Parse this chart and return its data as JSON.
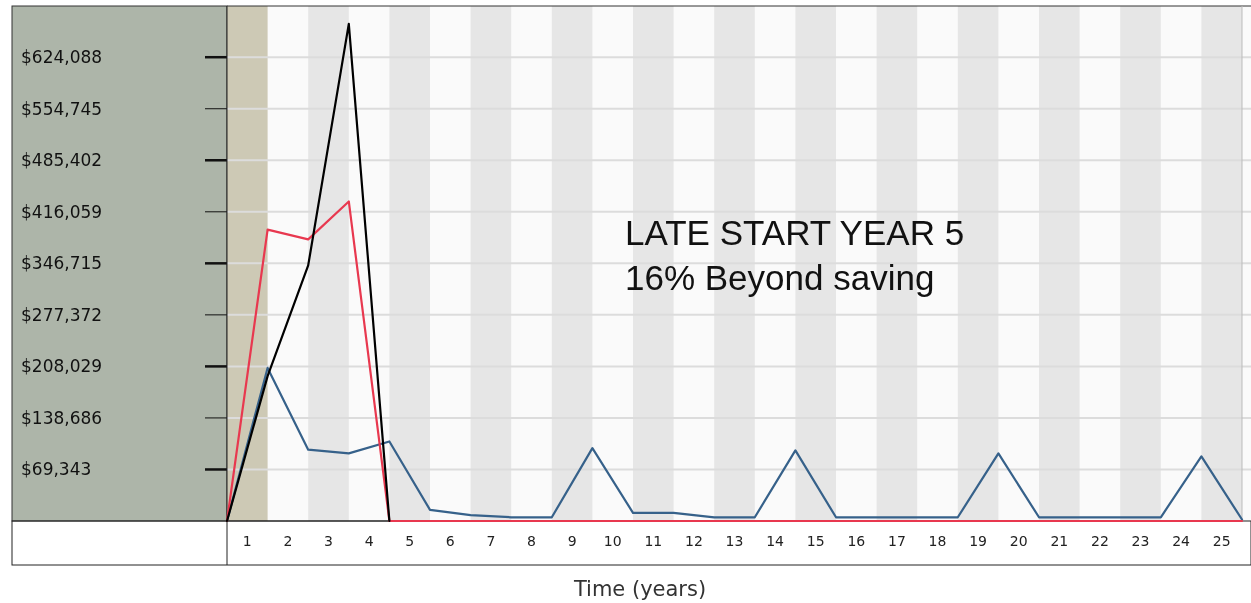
{
  "chart_data": {
    "type": "line",
    "xlabel": "Time (years)",
    "annotations": [
      "LATE START YEAR 5",
      "16% Beyond saving"
    ],
    "xlim": [
      0,
      25
    ],
    "xticks": [
      {
        "value": 0.5,
        "label": "1"
      },
      {
        "value": 1.5,
        "label": "2"
      },
      {
        "value": 2.5,
        "label": "3"
      },
      {
        "value": 3.5,
        "label": "4"
      },
      {
        "value": 4.5,
        "label": "5"
      },
      {
        "value": 5.5,
        "label": "6"
      },
      {
        "value": 6.5,
        "label": "7"
      },
      {
        "value": 7.5,
        "label": "8"
      },
      {
        "value": 8.5,
        "label": "9"
      },
      {
        "value": 9.5,
        "label": "10"
      },
      {
        "value": 10.5,
        "label": "11"
      },
      {
        "value": 11.5,
        "label": "12"
      },
      {
        "value": 12.5,
        "label": "13"
      },
      {
        "value": 13.5,
        "label": "14"
      },
      {
        "value": 14.5,
        "label": "15"
      },
      {
        "value": 15.5,
        "label": "16"
      },
      {
        "value": 16.5,
        "label": "17"
      },
      {
        "value": 17.5,
        "label": "18"
      },
      {
        "value": 18.5,
        "label": "19"
      },
      {
        "value": 19.5,
        "label": "20"
      },
      {
        "value": 20.5,
        "label": "21"
      },
      {
        "value": 21.5,
        "label": "22"
      },
      {
        "value": 22.5,
        "label": "23"
      },
      {
        "value": 23.5,
        "label": "24"
      },
      {
        "value": 24.5,
        "label": "25"
      }
    ],
    "ylim": [
      0,
      693000
    ],
    "yticks": [
      {
        "value": 69343,
        "label": "$69,343"
      },
      {
        "value": 138686,
        "label": "$138,686"
      },
      {
        "value": 208029,
        "label": "$208,029"
      },
      {
        "value": 277372,
        "label": "$277,372"
      },
      {
        "value": 346715,
        "label": "$346,715"
      },
      {
        "value": 416059,
        "label": "$416,059"
      },
      {
        "value": 485402,
        "label": "$485,402"
      },
      {
        "value": 554745,
        "label": "$554,745"
      },
      {
        "value": 624088,
        "label": "$624,088"
      }
    ],
    "grid": "y",
    "marker": "none",
    "line_style": "solid",
    "bands": [
      {
        "axis": "x",
        "from": 0,
        "to": 1,
        "color": "#cdc9b5"
      },
      {
        "axis": "x",
        "from": 2,
        "to": 3,
        "color": "#e6e6e6"
      },
      {
        "axis": "x",
        "from": 4,
        "to": 5,
        "color": "#e6e6e6"
      },
      {
        "axis": "x",
        "from": 6,
        "to": 7,
        "color": "#e6e6e6"
      },
      {
        "axis": "x",
        "from": 8,
        "to": 9,
        "color": "#e6e6e6"
      },
      {
        "axis": "x",
        "from": 10,
        "to": 11,
        "color": "#e6e6e6"
      },
      {
        "axis": "x",
        "from": 12,
        "to": 13,
        "color": "#e6e6e6"
      },
      {
        "axis": "x",
        "from": 14,
        "to": 15,
        "color": "#e6e6e6"
      },
      {
        "axis": "x",
        "from": 16,
        "to": 17,
        "color": "#e6e6e6"
      },
      {
        "axis": "x",
        "from": 18,
        "to": 19,
        "color": "#e6e6e6"
      },
      {
        "axis": "x",
        "from": 20,
        "to": 21,
        "color": "#e6e6e6"
      },
      {
        "axis": "x",
        "from": 22,
        "to": 23,
        "color": "#e6e6e6"
      },
      {
        "axis": "x",
        "from": 24,
        "to": 25,
        "color": "#e6e6e6"
      }
    ],
    "series": [
      {
        "color": "#36618a",
        "x": [
          0,
          1,
          2,
          3,
          4,
          5,
          6,
          7,
          8,
          9,
          10,
          11,
          12,
          13,
          14,
          15,
          16,
          17,
          18,
          19,
          20,
          21,
          22,
          23,
          24,
          25
        ],
        "values": [
          0,
          206000,
          96000,
          91000,
          107000,
          15000,
          8000,
          5000,
          5000,
          98000,
          11000,
          11000,
          5000,
          5000,
          95000,
          5000,
          5000,
          5000,
          5000,
          91000,
          5000,
          5000,
          5000,
          5000,
          87000,
          2000
        ]
      },
      {
        "color": "#e8384f",
        "x": [
          0,
          1,
          2,
          3,
          4,
          5,
          6,
          7,
          8,
          9,
          10,
          11,
          12,
          13,
          14,
          15,
          16,
          17,
          18,
          19,
          20,
          21,
          22,
          23,
          24,
          25
        ],
        "values": [
          0,
          392000,
          379000,
          430000,
          0,
          0,
          0,
          0,
          0,
          0,
          0,
          0,
          0,
          0,
          0,
          0,
          0,
          0,
          0,
          0,
          0,
          0,
          0,
          0,
          0,
          0
        ]
      },
      {
        "color": "#000000",
        "x": [
          0,
          1,
          2,
          3,
          4
        ],
        "values": [
          0,
          195000,
          344000,
          669000,
          0
        ]
      }
    ]
  }
}
